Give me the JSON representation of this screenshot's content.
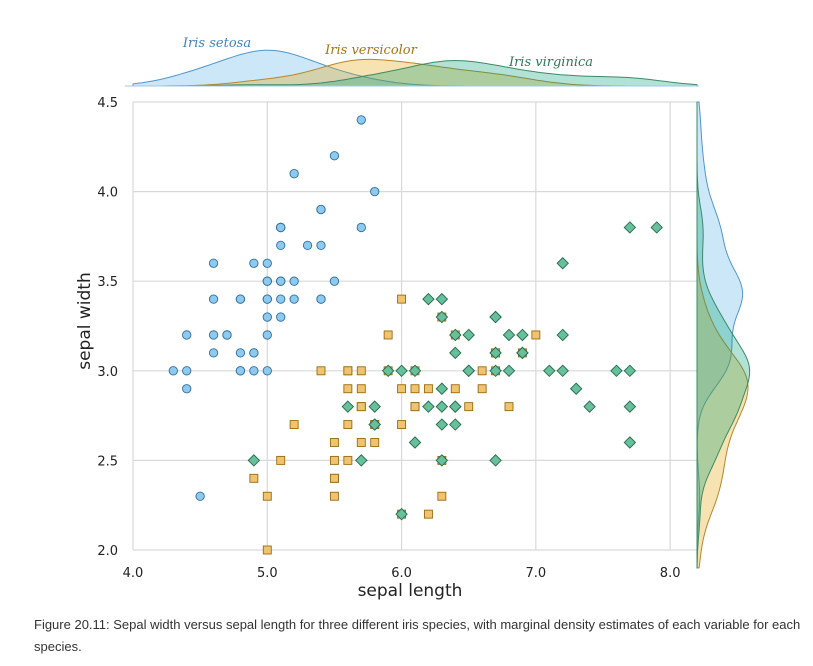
{
  "caption": "Figure 20.11: Sepal width versus sepal length for three different iris species, with marginal density estimates of each variable for each species.",
  "chart_data": {
    "type": "scatter",
    "title": "",
    "xlabel": "sepal length",
    "ylabel": "sepal width",
    "xlim": [
      4.0,
      8.2
    ],
    "ylim": [
      2.0,
      4.5
    ],
    "xticks": [
      "4.0",
      "5.0",
      "6.0",
      "7.0",
      "8.0"
    ],
    "yticks": [
      "2.0",
      "2.5",
      "3.0",
      "3.5",
      "4.0",
      "4.5"
    ],
    "grid": true,
    "marginal_densities": true,
    "series": [
      {
        "name": "Iris setosa",
        "marker": "circle",
        "color": "#56B4E9",
        "x": [
          5.1,
          4.9,
          4.7,
          4.6,
          5.0,
          5.4,
          4.6,
          5.0,
          4.4,
          4.9,
          5.4,
          4.8,
          4.8,
          4.3,
          5.8,
          5.7,
          5.4,
          5.1,
          5.7,
          5.1,
          5.4,
          5.1,
          4.6,
          5.1,
          4.8,
          5.0,
          5.0,
          5.2,
          5.2,
          4.7,
          4.8,
          5.4,
          5.2,
          5.5,
          4.9,
          5.0,
          5.5,
          4.9,
          4.4,
          5.1,
          5.0,
          4.5,
          4.4,
          5.0,
          5.1,
          4.8,
          5.1,
          4.6,
          5.3,
          5.0
        ],
        "y": [
          3.5,
          3.0,
          3.2,
          3.1,
          3.6,
          3.9,
          3.4,
          3.4,
          2.9,
          3.1,
          3.7,
          3.4,
          3.0,
          3.0,
          4.0,
          4.4,
          3.9,
          3.5,
          3.8,
          3.8,
          3.4,
          3.7,
          3.6,
          3.3,
          3.4,
          3.0,
          3.4,
          3.5,
          3.4,
          3.2,
          3.1,
          3.4,
          4.1,
          4.2,
          3.1,
          3.2,
          3.5,
          3.6,
          3.0,
          3.4,
          3.5,
          2.3,
          3.2,
          3.5,
          3.8,
          3.0,
          3.8,
          3.2,
          3.7,
          3.3
        ]
      },
      {
        "name": "Iris versicolor",
        "marker": "square",
        "color": "#E69F00",
        "x": [
          7.0,
          6.4,
          6.9,
          5.5,
          6.5,
          5.7,
          6.3,
          4.9,
          6.6,
          5.2,
          5.0,
          5.9,
          6.0,
          6.1,
          5.6,
          6.7,
          5.6,
          5.8,
          6.2,
          5.6,
          5.9,
          6.1,
          6.3,
          6.1,
          6.4,
          6.6,
          6.8,
          6.7,
          6.0,
          5.7,
          5.5,
          5.5,
          5.8,
          6.0,
          5.4,
          6.0,
          6.7,
          6.3,
          5.6,
          5.5,
          5.5,
          6.1,
          5.8,
          5.0,
          5.6,
          5.7,
          5.7,
          6.2,
          5.1,
          5.7
        ],
        "y": [
          3.2,
          3.2,
          3.1,
          2.3,
          2.8,
          2.8,
          3.3,
          2.4,
          2.9,
          2.7,
          2.0,
          3.0,
          2.2,
          2.9,
          2.9,
          3.1,
          3.0,
          2.7,
          2.2,
          2.5,
          3.2,
          2.8,
          2.5,
          2.8,
          2.9,
          3.0,
          2.8,
          3.0,
          2.9,
          2.6,
          2.4,
          2.4,
          2.7,
          2.7,
          3.0,
          3.4,
          3.1,
          2.3,
          3.0,
          2.5,
          2.6,
          3.0,
          2.6,
          2.3,
          2.7,
          3.0,
          2.9,
          2.9,
          2.5,
          2.8
        ]
      },
      {
        "name": "Iris virginica",
        "marker": "diamond",
        "color": "#009E73",
        "x": [
          6.3,
          5.8,
          7.1,
          6.3,
          6.5,
          7.6,
          4.9,
          7.3,
          6.7,
          7.2,
          6.5,
          6.4,
          6.8,
          5.7,
          5.8,
          6.4,
          6.5,
          7.7,
          7.7,
          6.0,
          6.9,
          5.6,
          7.7,
          6.3,
          6.7,
          7.2,
          6.2,
          6.1,
          6.4,
          7.2,
          7.4,
          7.9,
          6.4,
          6.3,
          6.1,
          7.7,
          6.3,
          6.4,
          6.0,
          6.9,
          6.7,
          6.9,
          5.8,
          6.8,
          6.7,
          6.7,
          6.3,
          6.5,
          6.2,
          5.9
        ],
        "y": [
          3.3,
          2.7,
          3.0,
          2.9,
          3.0,
          3.0,
          2.5,
          2.9,
          2.5,
          3.6,
          3.2,
          2.7,
          3.0,
          2.5,
          2.8,
          3.2,
          3.0,
          3.8,
          2.6,
          2.2,
          3.2,
          2.8,
          2.8,
          2.7,
          3.3,
          3.2,
          2.8,
          3.0,
          2.8,
          3.0,
          2.8,
          3.8,
          2.8,
          2.8,
          2.6,
          3.0,
          3.4,
          3.1,
          3.0,
          3.1,
          3.1,
          3.1,
          2.7,
          3.2,
          3.3,
          3.0,
          2.5,
          3.0,
          3.4,
          3.0
        ]
      }
    ]
  }
}
